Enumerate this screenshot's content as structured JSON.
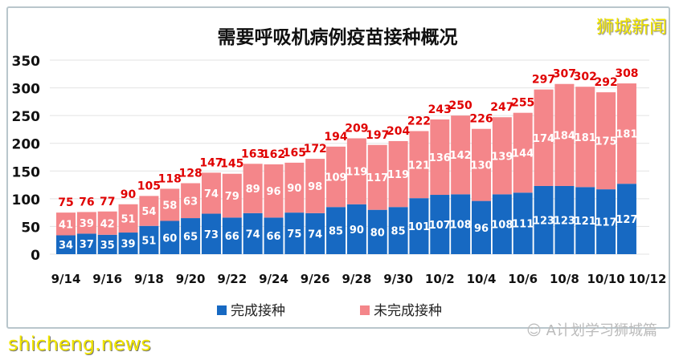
{
  "chart_data": {
    "type": "bar",
    "stacked": true,
    "title": "需要呼吸机病例疫苗接种概况",
    "categories": [
      "9/14",
      "9/15",
      "9/16",
      "9/17",
      "9/18",
      "9/19",
      "9/20",
      "9/21",
      "9/22",
      "9/23",
      "9/24",
      "9/25",
      "9/26",
      "9/27",
      "9/28",
      "9/29",
      "9/30",
      "10/1",
      "10/2",
      "10/3",
      "10/4",
      "10/5",
      "10/6",
      "10/7",
      "10/8",
      "10/9",
      "10/10",
      "10/11"
    ],
    "x_tick_labels": [
      "9/14",
      "9/16",
      "9/18",
      "9/20",
      "9/22",
      "9/24",
      "9/26",
      "9/28",
      "9/30",
      "10/2",
      "10/4",
      "10/6",
      "10/8",
      "10/10",
      "10/12"
    ],
    "series": [
      {
        "name": "完成接种",
        "color": "#1769c2",
        "values": [
          34,
          37,
          35,
          39,
          51,
          60,
          65,
          73,
          66,
          74,
          66,
          75,
          74,
          85,
          90,
          80,
          85,
          101,
          107,
          108,
          96,
          108,
          111,
          123,
          123,
          121,
          117,
          127
        ]
      },
      {
        "name": "未完成接种",
        "color": "#f4868a",
        "values": [
          41,
          39,
          42,
          51,
          54,
          58,
          63,
          74,
          79,
          89,
          96,
          90,
          98,
          109,
          119,
          117,
          119,
          121,
          136,
          142,
          130,
          139,
          144,
          174,
          184,
          181,
          175,
          181
        ]
      }
    ],
    "totals": [
      75,
      76,
      77,
      90,
      105,
      118,
      128,
      147,
      145,
      163,
      162,
      165,
      172,
      194,
      209,
      197,
      204,
      222,
      243,
      250,
      226,
      247,
      255,
      297,
      307,
      302,
      292,
      308
    ],
    "total_label_color": "#e00000",
    "ylim": [
      0,
      350
    ],
    "y_ticks": [
      0,
      50,
      100,
      150,
      200,
      250,
      300,
      350
    ],
    "grid": true,
    "legend": "bottom"
  },
  "watermarks": {
    "top_right": "狮城新闻",
    "bottom_left": "shicheng.news",
    "bottom_right": "A计划学习狮城篇"
  }
}
